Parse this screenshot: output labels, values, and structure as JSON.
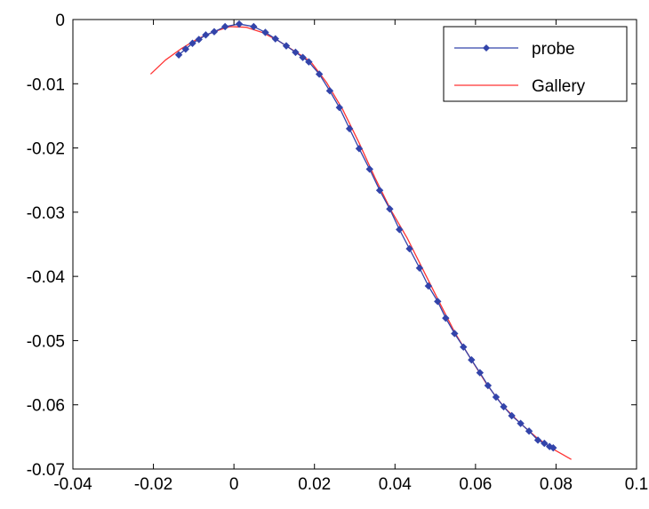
{
  "chart_data": {
    "type": "line",
    "title": "",
    "xlabel": "",
    "ylabel": "",
    "xlim": [
      -0.04,
      0.1
    ],
    "ylim": [
      -0.07,
      0
    ],
    "xticks": [
      "-0.04",
      "-0.02",
      "0",
      "0.02",
      "0.04",
      "0.06",
      "0.08",
      "0.1"
    ],
    "yticks": [
      "0",
      "-0.01",
      "-0.02",
      "-0.03",
      "-0.04",
      "-0.05",
      "-0.06",
      "-0.07"
    ],
    "grid": false,
    "legend_position": "top-right",
    "series": [
      {
        "name": "probe",
        "color": "#3344aa",
        "marker": "diamond",
        "x": [
          -0.0137,
          -0.012,
          -0.0103,
          -0.0087,
          -0.007,
          -0.0049,
          -0.0022,
          0.0013,
          0.0049,
          0.0078,
          0.0103,
          0.013,
          0.0153,
          0.0171,
          0.0186,
          0.0212,
          0.0238,
          0.0262,
          0.0287,
          0.0311,
          0.0337,
          0.0362,
          0.0387,
          0.0411,
          0.0436,
          0.0461,
          0.0483,
          0.0506,
          0.0526,
          0.0548,
          0.057,
          0.059,
          0.0611,
          0.0631,
          0.0651,
          0.067,
          0.069,
          0.0712,
          0.0733,
          0.0755,
          0.0771,
          0.0784,
          0.0793
        ],
        "y": [
          -0.0055,
          -0.0046,
          -0.0037,
          -0.0031,
          -0.0024,
          -0.0019,
          -0.0011,
          -0.0007,
          -0.0011,
          -0.002,
          -0.003,
          -0.0041,
          -0.0051,
          -0.0059,
          -0.0066,
          -0.0085,
          -0.0111,
          -0.0137,
          -0.017,
          -0.0201,
          -0.0233,
          -0.0266,
          -0.0295,
          -0.0327,
          -0.0357,
          -0.0387,
          -0.0415,
          -0.0439,
          -0.0465,
          -0.0489,
          -0.051,
          -0.053,
          -0.055,
          -0.057,
          -0.0588,
          -0.0603,
          -0.0617,
          -0.0629,
          -0.0641,
          -0.0655,
          -0.066,
          -0.0665,
          -0.0667
        ]
      },
      {
        "name": "Gallery",
        "color": "#ff3333",
        "marker": "none",
        "x": [
          -0.0207,
          -0.017,
          -0.013,
          -0.009,
          -0.005,
          -0.001,
          0.003,
          0.007,
          0.011,
          0.015,
          0.019,
          0.023,
          0.027,
          0.031,
          0.035,
          0.039,
          0.043,
          0.047,
          0.051,
          0.055,
          0.059,
          0.063,
          0.067,
          0.071,
          0.075,
          0.079,
          0.0838
        ],
        "y": [
          -0.0085,
          -0.0063,
          -0.0045,
          -0.003,
          -0.0019,
          -0.0011,
          -0.0012,
          -0.002,
          -0.0033,
          -0.0049,
          -0.0065,
          -0.0098,
          -0.014,
          -0.0191,
          -0.0246,
          -0.0297,
          -0.034,
          -0.039,
          -0.044,
          -0.0489,
          -0.053,
          -0.057,
          -0.0603,
          -0.0628,
          -0.065,
          -0.0668,
          -0.0685
        ]
      }
    ]
  }
}
